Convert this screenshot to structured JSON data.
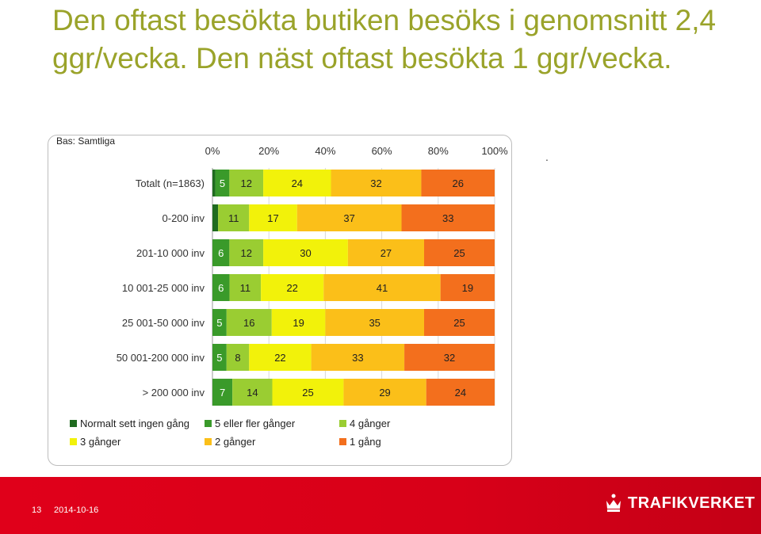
{
  "slide": {
    "title": "Den oftast besökta butiken besöks i genomsnitt  2,4 ggr/vecka. Den näst oftast besökta 1 ggr/vecka."
  },
  "chart_data": {
    "type": "bar",
    "orientation": "horizontal-stacked-100",
    "base_label": "Bas: Samtliga",
    "x_ticks": [
      "0%",
      "20%",
      "40%",
      "60%",
      "80%",
      "100%"
    ],
    "xlim": [
      0,
      100
    ],
    "grid": true,
    "legend_position": "bottom",
    "categories": [
      "Totalt (n=1863)",
      "0-200 inv",
      "201-10 000  inv",
      "10 001-25 000 inv",
      "25 001-50 000  inv",
      "50 001-200 000 inv",
      "> 200 000 inv"
    ],
    "series": [
      {
        "name": "Normalt sett ingen gång",
        "color": "#1f6b1f",
        "values": [
          1,
          2,
          0,
          0,
          0,
          0,
          0
        ],
        "labels": [
          "1",
          "2",
          "",
          "",
          "",
          "",
          ""
        ]
      },
      {
        "name": "5 eller fler gånger",
        "color": "#3a9a2a",
        "values": [
          5,
          0,
          6,
          6,
          5,
          5,
          7
        ],
        "labels": [
          "5",
          "",
          "6",
          "6",
          "5",
          "5",
          "7"
        ]
      },
      {
        "name": "4 gånger",
        "color": "#9acd32",
        "values": [
          12,
          11,
          12,
          11,
          16,
          8,
          14
        ],
        "labels": [
          "12",
          "11",
          "12",
          "11",
          "16",
          "8",
          "14"
        ]
      },
      {
        "name": "3 gånger",
        "color": "#f2f20a",
        "values": [
          24,
          17,
          30,
          22,
          19,
          22,
          25
        ],
        "labels": [
          "24",
          "17",
          "30",
          "22",
          "19",
          "22",
          "25"
        ]
      },
      {
        "name": "2 gånger",
        "color": "#fbbf19",
        "values": [
          32,
          37,
          27,
          41,
          35,
          33,
          29
        ],
        "labels": [
          "32",
          "37",
          "27",
          "41",
          "35",
          "33",
          "29"
        ]
      },
      {
        "name": "1 gång",
        "color": "#f36f1d",
        "values": [
          26,
          33,
          25,
          19,
          25,
          32,
          24
        ],
        "labels": [
          "26",
          "33",
          "25",
          "19",
          "25",
          "32",
          "24"
        ]
      }
    ]
  },
  "dot": ".",
  "footer": {
    "page_number": "13",
    "date": "2014-10-16",
    "logo_text": "TRAFIKVERKET"
  }
}
